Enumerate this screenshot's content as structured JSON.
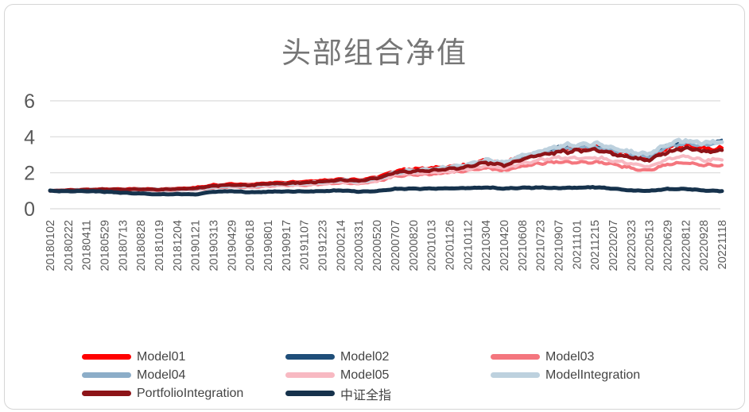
{
  "chart_data": {
    "type": "line",
    "title": "头部组合净值",
    "xlabel": "",
    "ylabel": "",
    "ylim": [
      0,
      6
    ],
    "yticks": [
      0,
      2,
      4,
      6
    ],
    "grid": true,
    "legend_position": "bottom",
    "x_categories": [
      "20180102",
      "20180222",
      "20180411",
      "20180529",
      "20180713",
      "20180828",
      "20181019",
      "20181204",
      "20190121",
      "20190313",
      "20190429",
      "20190618",
      "20190801",
      "20190917",
      "20191107",
      "20191223",
      "20200214",
      "20200331",
      "20200520",
      "20200707",
      "20200820",
      "20201013",
      "20201126",
      "20210112",
      "20210304",
      "20210420",
      "20210608",
      "20210723",
      "20210907",
      "20211101",
      "20211215",
      "20220207",
      "20220323",
      "20220513",
      "20220629",
      "20220812",
      "20220928",
      "20221118"
    ],
    "series": [
      {
        "name": "Model01",
        "color": "#FF0000",
        "width": 4,
        "values": [
          1.0,
          1.05,
          1.08,
          1.1,
          1.1,
          1.12,
          1.08,
          1.13,
          1.18,
          1.32,
          1.38,
          1.36,
          1.44,
          1.47,
          1.52,
          1.57,
          1.66,
          1.6,
          1.76,
          2.1,
          2.2,
          2.25,
          2.35,
          2.45,
          2.7,
          2.55,
          2.9,
          3.1,
          3.35,
          3.4,
          3.5,
          3.2,
          3.0,
          2.85,
          3.4,
          3.55,
          3.35,
          3.35
        ]
      },
      {
        "name": "Model02",
        "color": "#1F4E79",
        "width": 2.2,
        "values": [
          1.0,
          1.02,
          1.05,
          1.06,
          1.05,
          1.06,
          1.04,
          1.07,
          1.1,
          1.24,
          1.3,
          1.28,
          1.36,
          1.39,
          1.43,
          1.48,
          1.58,
          1.52,
          1.66,
          2.0,
          2.1,
          2.16,
          2.28,
          2.4,
          2.65,
          2.5,
          2.85,
          3.05,
          3.45,
          3.5,
          3.55,
          3.3,
          3.1,
          2.95,
          3.55,
          3.75,
          3.6,
          3.85
        ]
      },
      {
        "name": "Model03",
        "color": "#F4767E",
        "width": 4,
        "values": [
          1.0,
          1.0,
          1.02,
          1.03,
          1.02,
          1.03,
          1.0,
          1.03,
          1.06,
          1.17,
          1.22,
          1.2,
          1.27,
          1.3,
          1.32,
          1.37,
          1.44,
          1.4,
          1.52,
          1.82,
          1.9,
          1.92,
          2.02,
          2.12,
          2.27,
          2.12,
          2.37,
          2.52,
          2.62,
          2.57,
          2.62,
          2.47,
          2.27,
          2.12,
          2.47,
          2.57,
          2.42,
          2.42
        ]
      },
      {
        "name": "Model04",
        "color": "#8CADC8",
        "width": 3.5,
        "values": [
          1.0,
          1.01,
          1.04,
          1.05,
          1.04,
          1.05,
          1.03,
          1.06,
          1.08,
          1.22,
          1.27,
          1.25,
          1.33,
          1.36,
          1.41,
          1.46,
          1.56,
          1.5,
          1.63,
          1.96,
          2.06,
          2.12,
          2.24,
          2.36,
          2.6,
          2.46,
          2.82,
          3.02,
          3.32,
          3.4,
          3.46,
          3.25,
          3.05,
          2.9,
          3.46,
          3.66,
          3.5,
          3.65
        ]
      },
      {
        "name": "Model05",
        "color": "#F8B9C2",
        "width": 4,
        "values": [
          1.0,
          1.01,
          1.03,
          1.04,
          1.03,
          1.04,
          1.02,
          1.05,
          1.07,
          1.19,
          1.23,
          1.22,
          1.29,
          1.32,
          1.35,
          1.4,
          1.48,
          1.44,
          1.56,
          1.88,
          1.96,
          2.0,
          2.09,
          2.19,
          2.39,
          2.24,
          2.53,
          2.71,
          2.86,
          2.81,
          2.86,
          2.69,
          2.5,
          2.35,
          2.76,
          2.91,
          2.71,
          2.76
        ]
      },
      {
        "name": "ModelIntegration",
        "color": "#BDD1DE",
        "width": 5,
        "values": [
          1.0,
          1.02,
          1.05,
          1.06,
          1.05,
          1.07,
          1.05,
          1.08,
          1.1,
          1.24,
          1.29,
          1.28,
          1.36,
          1.39,
          1.44,
          1.49,
          1.59,
          1.54,
          1.67,
          2.01,
          2.13,
          2.19,
          2.31,
          2.46,
          2.71,
          2.56,
          2.96,
          3.16,
          3.5,
          3.56,
          3.61,
          3.36,
          3.16,
          3.01,
          3.61,
          3.81,
          3.66,
          3.76
        ]
      },
      {
        "name": "PortfolioIntegration",
        "color": "#8D1418",
        "width": 4.5,
        "values": [
          1.0,
          1.03,
          1.06,
          1.08,
          1.07,
          1.09,
          1.06,
          1.1,
          1.13,
          1.27,
          1.32,
          1.31,
          1.38,
          1.41,
          1.46,
          1.51,
          1.59,
          1.55,
          1.69,
          2.01,
          2.09,
          2.13,
          2.23,
          2.33,
          2.56,
          2.41,
          2.76,
          2.96,
          3.16,
          3.21,
          3.26,
          3.06,
          2.86,
          2.71,
          3.16,
          3.36,
          3.21,
          3.21
        ]
      },
      {
        "name": "中证全指",
        "color": "#16324C",
        "width": 5,
        "values": [
          1.0,
          0.97,
          0.98,
          0.95,
          0.89,
          0.85,
          0.8,
          0.82,
          0.8,
          0.95,
          0.98,
          0.92,
          0.95,
          0.97,
          0.96,
          0.98,
          1.02,
          0.95,
          0.98,
          1.1,
          1.12,
          1.12,
          1.13,
          1.15,
          1.18,
          1.12,
          1.17,
          1.18,
          1.15,
          1.17,
          1.2,
          1.12,
          1.02,
          1.0,
          1.1,
          1.1,
          1.02,
          0.98
        ]
      }
    ],
    "axis_color": "#595959",
    "gridline_color": "#D9D9D9"
  }
}
